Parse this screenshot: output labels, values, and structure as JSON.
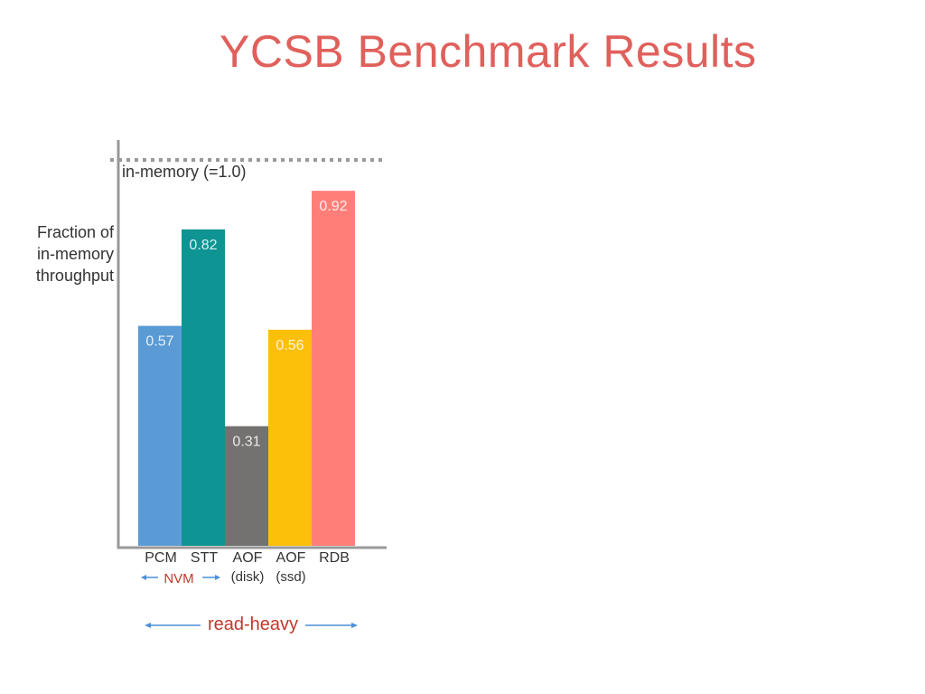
{
  "title": "YCSB Benchmark Results",
  "colors": {
    "title": "#e0605c",
    "axis": "#999999",
    "reference_line": "#999999",
    "arrow_blue": "#4a90d9",
    "red_text": "#c0392b"
  },
  "ylabel_lines": [
    "Fraction of",
    "in-memory",
    "throughput"
  ],
  "reference": {
    "label": "in-memory (=1.0)",
    "value": 1.0
  },
  "chart_data": {
    "type": "bar",
    "title": "YCSB Benchmark Results",
    "ylabel": "Fraction of in-memory throughput",
    "categories": [
      "PCM",
      "STT",
      "AOF",
      "AOF",
      "RDB"
    ],
    "category_sublabels": [
      "",
      "",
      "(disk)",
      "(ssd)",
      ""
    ],
    "values": [
      0.57,
      0.82,
      0.31,
      0.56,
      0.92
    ],
    "value_labels": [
      "0.57",
      "0.82",
      "0.31",
      "0.56",
      "0.92"
    ],
    "bar_colors": [
      "#5b9bd5",
      "#0e9493",
      "#747171",
      "#fcbf0a",
      "#ff7f78"
    ],
    "ylim": [
      0,
      1.0
    ],
    "grid": false,
    "reference_line": 1.0
  },
  "group_labels": {
    "nvm": "NVM",
    "read_heavy": "read-heavy"
  }
}
